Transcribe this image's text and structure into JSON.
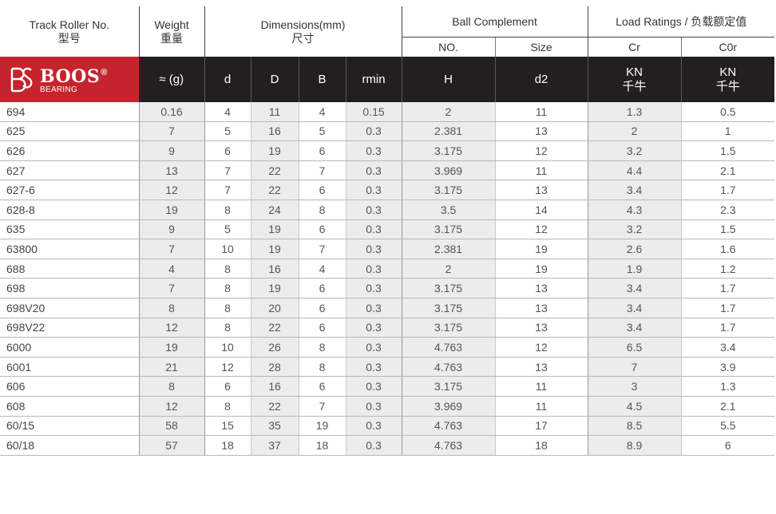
{
  "header": {
    "track_en": "Track Roller No.",
    "track_cn": "型号",
    "weight_en": "Weight",
    "weight_cn": "重量",
    "dim_en": "Dimensions(mm)",
    "dim_cn": "尺寸",
    "ball": "Ball Complement",
    "ball_no": "NO.",
    "ball_size": "Size",
    "load": "Load Ratings / 负载额定值",
    "load_cr": "Cr",
    "load_c0r": "C0r"
  },
  "logo": {
    "brand": "BOOS",
    "registered": "®",
    "sub": "BEARING"
  },
  "units": {
    "weight": "≈ (g)",
    "d": "d",
    "D": "D",
    "B": "B",
    "rmin": "rmin",
    "H": "H",
    "d2": "d2",
    "cr_1": "KN",
    "cr_2": "千牛",
    "c0r_1": "KN",
    "c0r_2": "千牛"
  },
  "rows": [
    [
      "694",
      "0.16",
      "4",
      "11",
      "4",
      "0.15",
      "2",
      "11",
      "1.3",
      "0.5"
    ],
    [
      "625",
      "7",
      "5",
      "16",
      "5",
      "0.3",
      "2.381",
      "13",
      "2",
      "1"
    ],
    [
      "626",
      "9",
      "6",
      "19",
      "6",
      "0.3",
      "3.175",
      "12",
      "3.2",
      "1.5"
    ],
    [
      "627",
      "13",
      "7",
      "22",
      "7",
      "0.3",
      "3.969",
      "11",
      "4.4",
      "2.1"
    ],
    [
      "627-6",
      "12",
      "7",
      "22",
      "6",
      "0.3",
      "3.175",
      "13",
      "3.4",
      "1.7"
    ],
    [
      "628-8",
      "19",
      "8",
      "24",
      "8",
      "0.3",
      "3.5",
      "14",
      "4.3",
      "2.3"
    ],
    [
      "635",
      "9",
      "5",
      "19",
      "6",
      "0.3",
      "3.175",
      "12",
      "3.2",
      "1.5"
    ],
    [
      "63800",
      "7",
      "10",
      "19",
      "7",
      "0.3",
      "2.381",
      "19",
      "2.6",
      "1.6"
    ],
    [
      "688",
      "4",
      "8",
      "16",
      "4",
      "0.3",
      "2",
      "19",
      "1.9",
      "1.2"
    ],
    [
      "698",
      "7",
      "8",
      "19",
      "6",
      "0.3",
      "3.175",
      "13",
      "3.4",
      "1.7"
    ],
    [
      "698V20",
      "8",
      "8",
      "20",
      "6",
      "0.3",
      "3.175",
      "13",
      "3.4",
      "1.7"
    ],
    [
      "698V22",
      "12",
      "8",
      "22",
      "6",
      "0.3",
      "3.175",
      "13",
      "3.4",
      "1.7"
    ],
    [
      "6000",
      "19",
      "10",
      "26",
      "8",
      "0.3",
      "4.763",
      "12",
      "6.5",
      "3.4"
    ],
    [
      "6001",
      "21",
      "12",
      "28",
      "8",
      "0.3",
      "4.763",
      "13",
      "7",
      "3.9"
    ],
    [
      "606",
      "8",
      "6",
      "16",
      "6",
      "0.3",
      "3.175",
      "11",
      "3",
      "1.3"
    ],
    [
      "608",
      "12",
      "8",
      "22",
      "7",
      "0.3",
      "3.969",
      "11",
      "4.5",
      "2.1"
    ],
    [
      "60/15",
      "58",
      "15",
      "35",
      "19",
      "0.3",
      "4.763",
      "17",
      "8.5",
      "5.5"
    ],
    [
      "60/18",
      "57",
      "18",
      "37",
      "18",
      "0.3",
      "4.763",
      "18",
      "8.9",
      "6"
    ]
  ],
  "colors": {
    "logo_red": "#c5242d",
    "header_dark": "#231f20",
    "shade": "#ececec"
  }
}
